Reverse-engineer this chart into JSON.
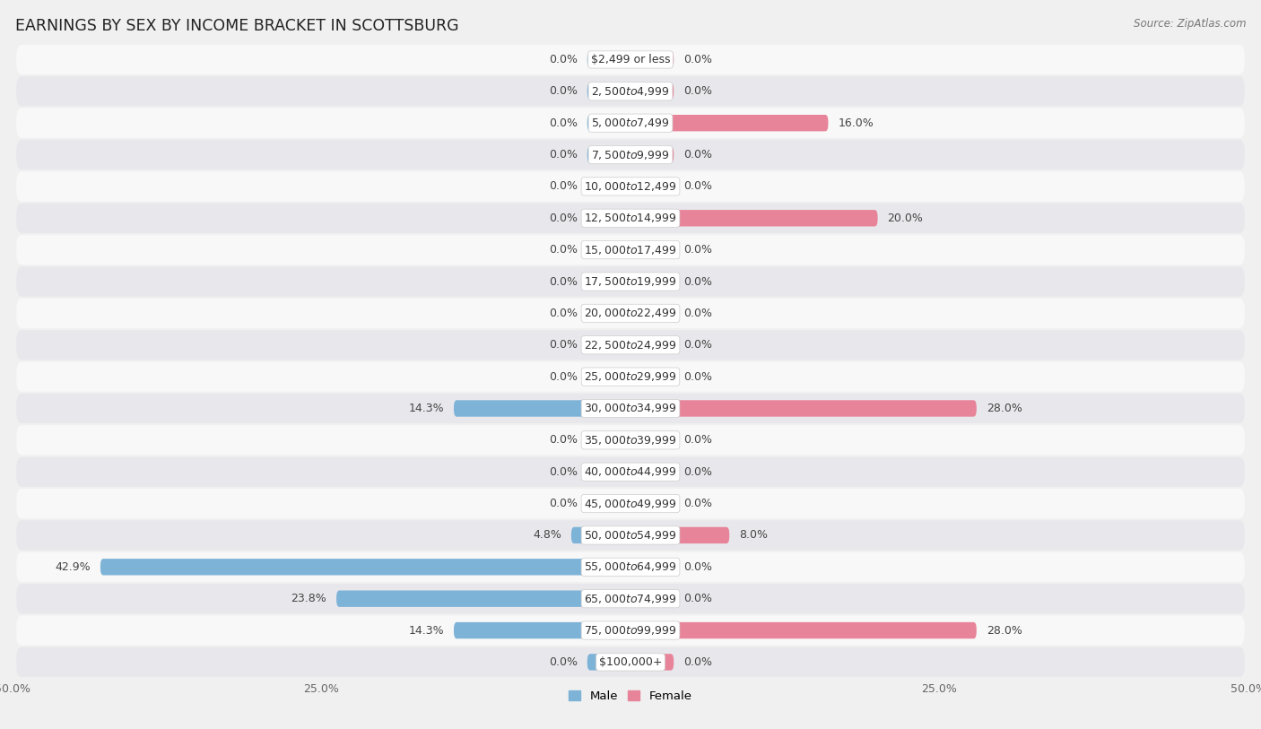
{
  "title": "EARNINGS BY SEX BY INCOME BRACKET IN SCOTTSBURG",
  "source": "Source: ZipAtlas.com",
  "categories": [
    "$2,499 or less",
    "$2,500 to $4,999",
    "$5,000 to $7,499",
    "$7,500 to $9,999",
    "$10,000 to $12,499",
    "$12,500 to $14,999",
    "$15,000 to $17,499",
    "$17,500 to $19,999",
    "$20,000 to $22,499",
    "$22,500 to $24,999",
    "$25,000 to $29,999",
    "$30,000 to $34,999",
    "$35,000 to $39,999",
    "$40,000 to $44,999",
    "$45,000 to $49,999",
    "$50,000 to $54,999",
    "$55,000 to $64,999",
    "$65,000 to $74,999",
    "$75,000 to $99,999",
    "$100,000+"
  ],
  "male": [
    0.0,
    0.0,
    0.0,
    0.0,
    0.0,
    0.0,
    0.0,
    0.0,
    0.0,
    0.0,
    0.0,
    14.3,
    0.0,
    0.0,
    0.0,
    4.8,
    42.9,
    23.8,
    14.3,
    0.0
  ],
  "female": [
    0.0,
    0.0,
    16.0,
    0.0,
    0.0,
    20.0,
    0.0,
    0.0,
    0.0,
    0.0,
    0.0,
    28.0,
    0.0,
    0.0,
    0.0,
    8.0,
    0.0,
    0.0,
    28.0,
    0.0
  ],
  "male_color": "#7eb3d8",
  "female_color": "#e8849a",
  "male_label": "Male",
  "female_label": "Female",
  "xlim": 50.0,
  "bg_color": "#f0f0f0",
  "row_colors": [
    "#f8f8f8",
    "#e8e8ec"
  ],
  "bar_height": 0.52,
  "min_bar": 3.5,
  "title_fontsize": 12.5,
  "label_fontsize": 9,
  "cat_fontsize": 9,
  "axis_fontsize": 9,
  "source_fontsize": 8.5,
  "value_color": "#444444"
}
